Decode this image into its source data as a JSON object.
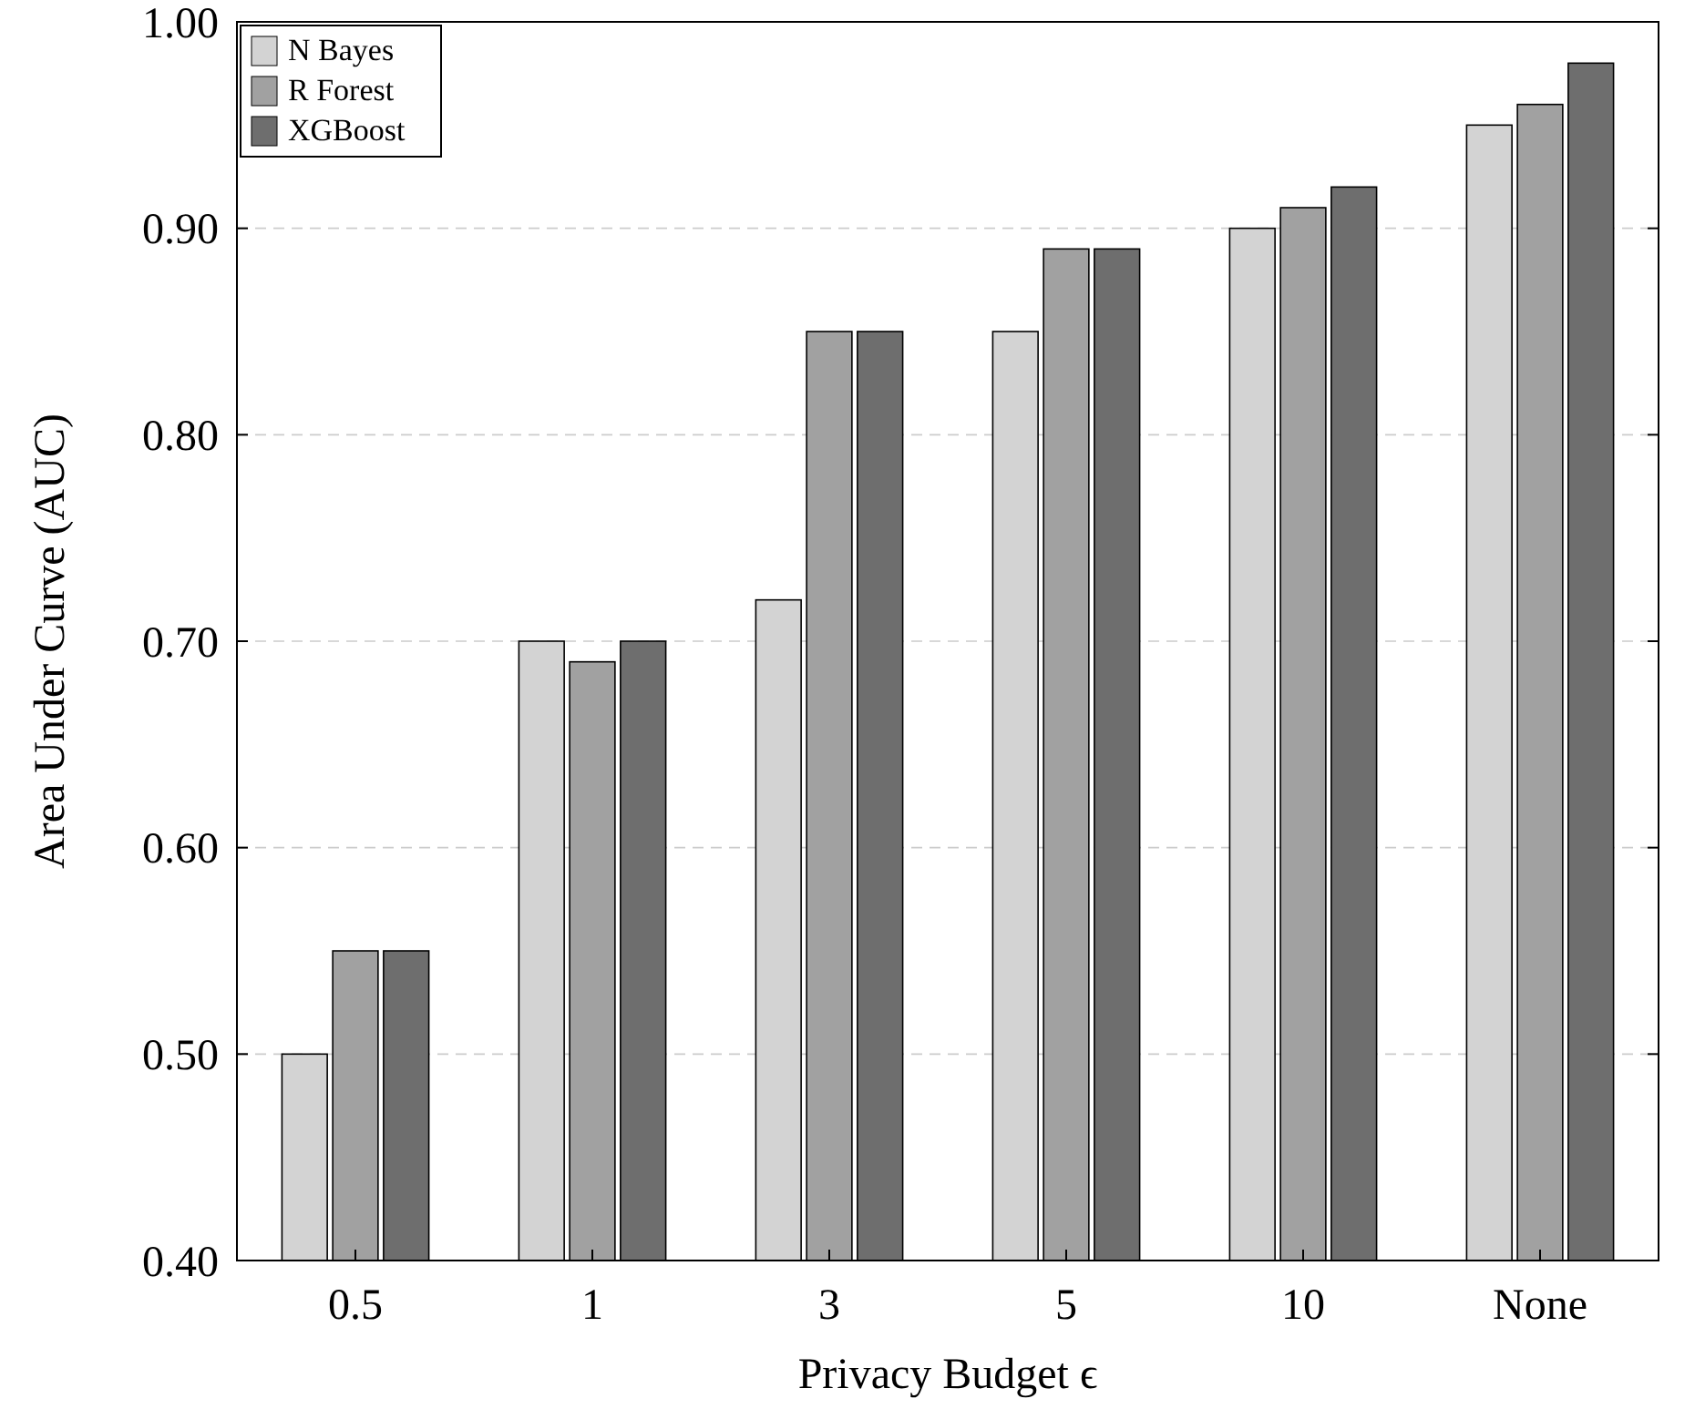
{
  "chart_data": {
    "type": "bar",
    "xlabel": "Privacy Budget ϵ",
    "ylabel": "Area Under Curve (AUC)",
    "categories": [
      "0.5",
      "1",
      "3",
      "5",
      "10",
      "None"
    ],
    "series": [
      {
        "name": "N Bayes",
        "color": "#d3d3d3",
        "values": [
          0.5,
          0.7,
          0.72,
          0.85,
          0.9,
          0.95
        ]
      },
      {
        "name": "R Forest",
        "color": "#a1a1a1",
        "values": [
          0.55,
          0.69,
          0.85,
          0.89,
          0.91,
          0.96
        ]
      },
      {
        "name": "XGBoost",
        "color": "#6e6e6e",
        "values": [
          0.55,
          0.7,
          0.85,
          0.89,
          0.92,
          0.98
        ]
      }
    ],
    "ylim": [
      0.4,
      1.0
    ],
    "yticks": [
      {
        "value": 0.4,
        "label": "0.40"
      },
      {
        "value": 0.5,
        "label": "0.50"
      },
      {
        "value": 0.6,
        "label": "0.60"
      },
      {
        "value": 0.7,
        "label": "0.70"
      },
      {
        "value": 0.8,
        "label": "0.80"
      },
      {
        "value": 0.9,
        "label": "0.90"
      },
      {
        "value": 1.0,
        "label": "1.00"
      }
    ],
    "grid": "y",
    "legend": "top left"
  }
}
